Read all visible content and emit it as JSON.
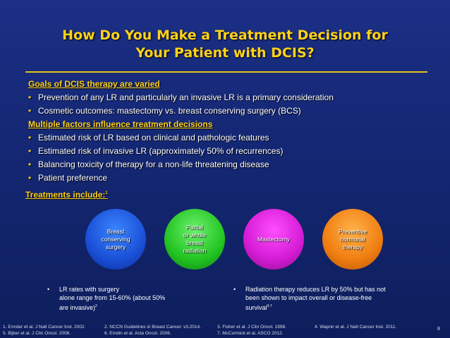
{
  "title_line1": "How Do You Make a Treatment Decision for",
  "title_line2": "Your Patient with DCIS?",
  "section1": {
    "heading": "Goals of DCIS therapy are varied",
    "bullets": [
      "Prevention of any LR and particularly an invasive LR is a primary consideration",
      "Cosmetic outcomes: mastectomy vs. breast conserving surgery (BCS)"
    ]
  },
  "section2": {
    "heading": "Multiple factors influence treatment decisions",
    "bullets": [
      "Estimated risk of LR based on clinical and pathologic features",
      "Estimated risk of invasive LR (approximately 50% of recurrences)",
      "Balancing toxicity of therapy for a non-life threatening disease",
      "Patient preference"
    ]
  },
  "treatments_heading": "Treatments include:",
  "treatments_ref": "1",
  "circles": [
    {
      "line1": "Breast",
      "line2": "conserving",
      "line3": "surgery"
    },
    {
      "line1": "Partial",
      "line2": "or whole",
      "line3": "breast",
      "line4": "radiation"
    },
    {
      "line1": "Mastectomy"
    },
    {
      "line1": "Preventive",
      "line2": "hormonal",
      "line3": "therapy"
    }
  ],
  "note_left": {
    "l1": "LR rates with surgery",
    "l2": "alone range from 15-60% (about 50%",
    "l3": "are invasive)",
    "ref": "2"
  },
  "note_right": {
    "l1": "Radiation therapy reduces LR by 50% but has not",
    "l2": "been shown to impact overall or disease-free",
    "l3": "survival",
    "ref": "3-7"
  },
  "references": [
    [
      "1. Ernster et al. J Natl Cancer Inst. 2002.",
      "5. Bijker et al. J Clin Oncol. 2006."
    ],
    [
      "2. NCCN Guidelines in Breast Cancer. v3.2014.",
      "6. Emdin et al. Acta Oncol. 2006."
    ],
    [
      "3. Fisher et al. J Clin Oncol. 1998.",
      "7. McCormick et al. ASCO 2012."
    ],
    [
      "4. Wapnir et al. J Natl Cancer Inst. 2011.",
      ""
    ]
  ],
  "page_number": "8",
  "bullet_glyph": "•",
  "colors": {
    "background": "#142773",
    "accent": "#ffd21a"
  }
}
